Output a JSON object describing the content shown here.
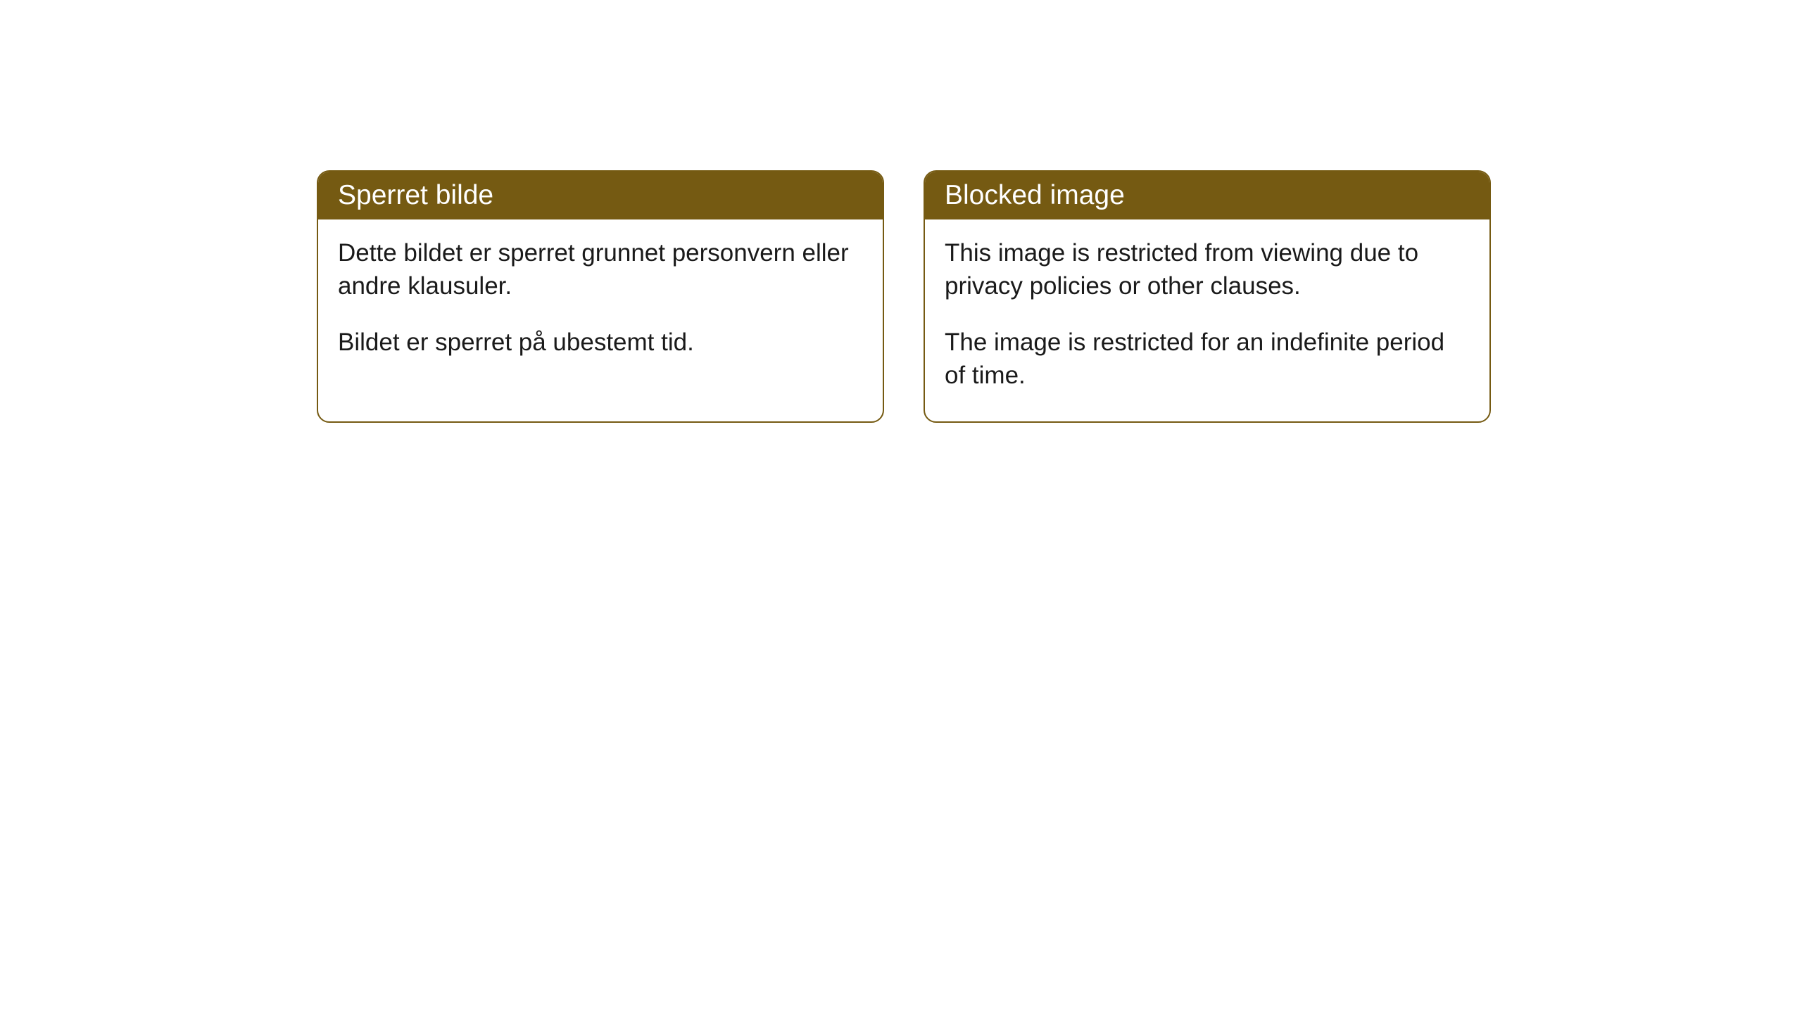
{
  "cards": [
    {
      "title": "Sperret bilde",
      "paragraph1": "Dette bildet er sperret grunnet personvern eller andre klausuler.",
      "paragraph2": "Bildet er sperret på ubestemt tid."
    },
    {
      "title": "Blocked image",
      "paragraph1": "This image is restricted from viewing due to privacy policies or other clauses.",
      "paragraph2": "The image is restricted for an indefinite period of time."
    }
  ],
  "styling": {
    "header_bg_color": "#755a12",
    "header_text_color": "#ffffff",
    "border_color": "#755a12",
    "body_bg_color": "#ffffff",
    "body_text_color": "#1a1a1a",
    "border_radius": 18,
    "header_fontsize": 39,
    "body_fontsize": 35
  }
}
